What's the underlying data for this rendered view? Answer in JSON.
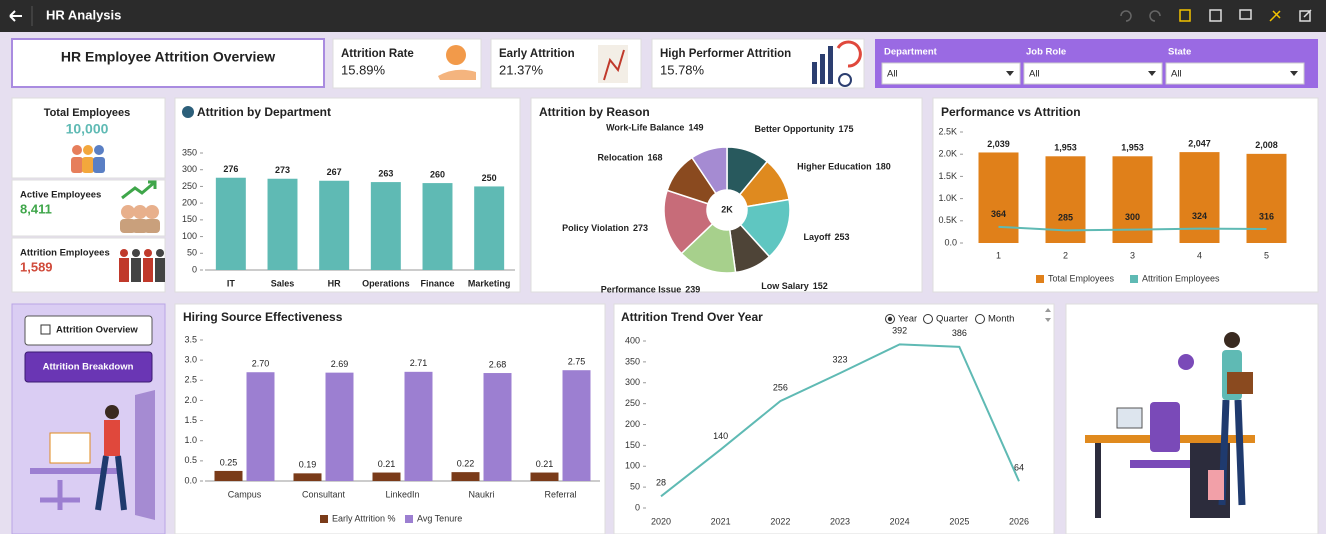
{
  "header": {
    "title": "HR Analysis"
  },
  "overview": {
    "title": "HR Employee Attrition Overview"
  },
  "kpis": [
    {
      "label": "Attrition Rate",
      "value": "15.89%"
    },
    {
      "label": "Early Attrition",
      "value": "21.37%"
    },
    {
      "label": "High Performer Attrition",
      "value": "15.78%"
    }
  ],
  "filters": [
    {
      "label": "Department",
      "value": "All"
    },
    {
      "label": "Job Role",
      "value": "All"
    },
    {
      "label": "State",
      "value": "All"
    }
  ],
  "summary": [
    {
      "label": "Total Employees",
      "value": "10,000"
    },
    {
      "label": "Active Employees",
      "value": "8,411"
    },
    {
      "label": "Attrition Employees",
      "value": "1,589"
    }
  ],
  "navigation": [
    "Attrition Overview",
    "Attrition Breakdown"
  ],
  "chart_data": [
    {
      "type": "bar",
      "title": "Attrition by Department",
      "categories": [
        "IT",
        "Sales",
        "HR",
        "Operations",
        "Finance",
        "Marketing"
      ],
      "values": [
        276,
        273,
        267,
        263,
        260,
        250
      ],
      "color": "#5fbab4",
      "ylim": [
        0,
        350
      ],
      "yticks": [
        0,
        50,
        100,
        150,
        200,
        250,
        300,
        350
      ]
    },
    {
      "type": "pie",
      "title": "Attrition by Reason",
      "center_label": "2K",
      "categories": [
        "Better Opportunity",
        "Higher Education",
        "Layoff",
        "Low Salary",
        "Performance Issue",
        "Policy Violation",
        "Relocation",
        "Work-Life Balance"
      ],
      "values": [
        175,
        180,
        253,
        152,
        239,
        273,
        168,
        149
      ],
      "colors": [
        "#28595d",
        "#df8a1f",
        "#5fc6c1",
        "#4e4437",
        "#a7d08c",
        "#c76c79",
        "#8a4a1f",
        "#a58bd2"
      ]
    },
    {
      "type": "combo",
      "title": "Performance vs Attrition",
      "categories": [
        "1",
        "2",
        "3",
        "4",
        "5"
      ],
      "ylim": [
        0,
        2500
      ],
      "yticks": [
        {
          "value": 0,
          "label": "0.0"
        },
        {
          "value": 500,
          "label": "0.5K"
        },
        {
          "value": 1000,
          "label": "1.0K"
        },
        {
          "value": 1500,
          "label": "1.5K"
        },
        {
          "value": 2000,
          "label": "2.0K"
        },
        {
          "value": 2500,
          "label": "2.5K"
        }
      ],
      "series": [
        {
          "name": "Total Employees",
          "type": "bar",
          "color": "#e0801a",
          "values": [
            2039,
            1953,
            1953,
            2047,
            2008
          ],
          "value_labels": [
            "2,039",
            "1,953",
            "1,953",
            "2,047",
            "2,008"
          ]
        },
        {
          "name": "Attrition Employees",
          "type": "line",
          "color": "#5fbab4",
          "values": [
            364,
            285,
            300,
            324,
            316
          ]
        }
      ]
    },
    {
      "type": "grouped-bar",
      "title": "Hiring Source Effectiveness",
      "categories": [
        "Campus",
        "Consultant",
        "LinkedIn",
        "Naukri",
        "Referral"
      ],
      "ylim": [
        0,
        3.5
      ],
      "yticks": [
        {
          "value": 0,
          "label": "0.0"
        },
        0.5,
        {
          "value": 1,
          "label": "1.0"
        },
        1.5,
        {
          "value": 2,
          "label": "2.0"
        },
        2.5,
        {
          "value": 3,
          "label": "3.0"
        },
        3.5
      ],
      "series": [
        {
          "name": "Early Attrition %",
          "color": "#7a3b19",
          "values": [
            0.25,
            0.19,
            0.21,
            0.22,
            0.21
          ]
        },
        {
          "name": "Avg Tenure",
          "color": "#9c7fd1",
          "values": [
            2.7,
            2.69,
            2.71,
            2.68,
            2.75
          ],
          "value_labels": [
            "2.70",
            "2.69",
            "2.71",
            "2.68",
            "2.75"
          ]
        }
      ]
    },
    {
      "type": "line",
      "title": "Attrition Trend Over Year",
      "options": [
        "Year",
        "Quarter",
        "Month"
      ],
      "selected": "Year",
      "categories": [
        "2020",
        "2021",
        "2022",
        "2023",
        "2024",
        "2025",
        "2026"
      ],
      "values": [
        28,
        140,
        256,
        323,
        392,
        386,
        64
      ],
      "color": "#5fbab4",
      "ylim": [
        0,
        400
      ],
      "yticks": [
        0,
        50,
        100,
        150,
        200,
        250,
        300,
        350,
        400
      ]
    }
  ]
}
